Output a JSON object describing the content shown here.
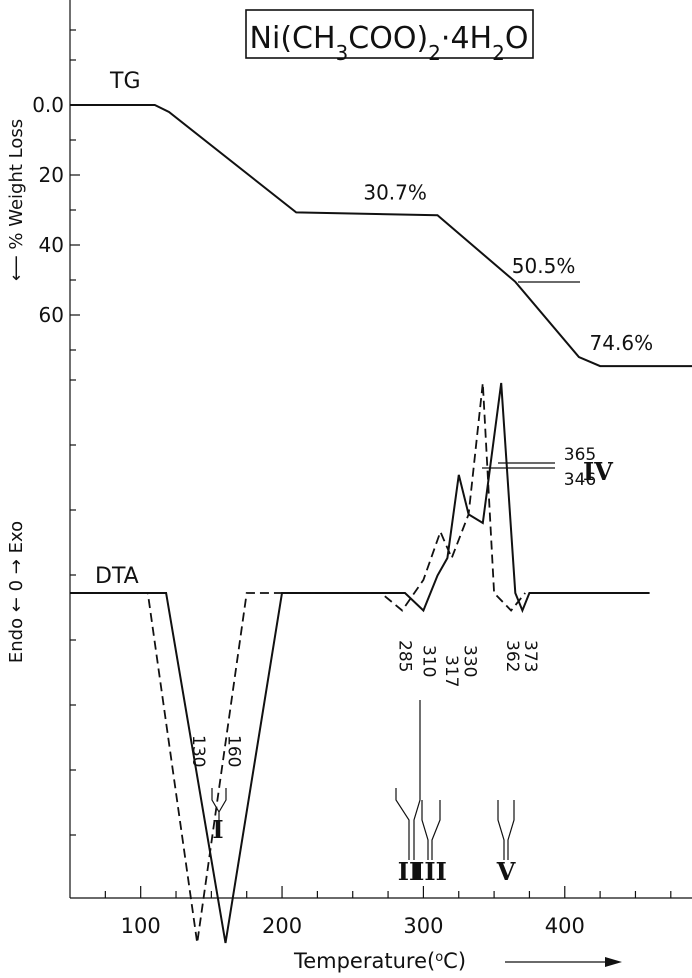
{
  "chart_data": {
    "type": "line",
    "title": "Ni(CH3COO)2·4H2O",
    "xlabel": "Temperature(°C)",
    "x_ticks": [
      "100",
      "200",
      "300",
      "400"
    ],
    "xlim": [
      50,
      490
    ],
    "tg": {
      "label": "TG",
      "ylabel": "% Weight Loss",
      "ylim": [
        0,
        80
      ],
      "y_ticks": [
        "0.0",
        "20",
        "40",
        "60"
      ],
      "points": [
        [
          50,
          0
        ],
        [
          110,
          0
        ],
        [
          120,
          2
        ],
        [
          210,
          30.7
        ],
        [
          310,
          31.5
        ],
        [
          365,
          50.5
        ],
        [
          410,
          72
        ],
        [
          425,
          74.6
        ],
        [
          490,
          74.6
        ]
      ],
      "annotations": [
        {
          "text": "30.7%",
          "x": 280,
          "y": 27
        },
        {
          "text": "50.5%",
          "x": 385,
          "y": 48
        },
        {
          "text": "74.6%",
          "x": 440,
          "y": 70
        }
      ]
    },
    "dta": {
      "label": "DTA",
      "ylabel": "Endo ← 0 → Exo",
      "series": [
        {
          "style": "solid",
          "points": [
            [
              50,
              0
            ],
            [
              118,
              0
            ],
            [
              160,
              -40
            ],
            [
              200,
              0
            ],
            [
              287,
              0
            ],
            [
              300,
              -2
            ],
            [
              310,
              2
            ],
            [
              317,
              4
            ],
            [
              325,
              13.5
            ],
            [
              332,
              9
            ],
            [
              342,
              8
            ],
            [
              355,
              24
            ],
            [
              365,
              0
            ],
            [
              370,
              -2
            ],
            [
              375,
              0
            ],
            [
              460,
              0
            ]
          ]
        },
        {
          "style": "dashed",
          "points": [
            [
              50,
              0
            ],
            [
              105,
              0
            ],
            [
              140,
              -40
            ],
            [
              175,
              0
            ],
            [
              270,
              0
            ],
            [
              285,
              -2
            ],
            [
              300,
              1.5
            ],
            [
              312,
              7
            ],
            [
              320,
              4
            ],
            [
              332,
              9
            ],
            [
              342,
              24
            ],
            [
              350,
              0
            ],
            [
              362,
              -2
            ],
            [
              372,
              0
            ]
          ]
        }
      ],
      "peaks": [
        "130",
        "160",
        "285",
        "310",
        "317",
        "330",
        "362",
        "373",
        "365",
        "346"
      ],
      "stage_labels": [
        "I",
        "II",
        "III",
        "IV",
        "V"
      ]
    }
  }
}
